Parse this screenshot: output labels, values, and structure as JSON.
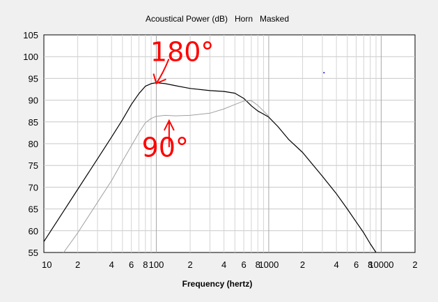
{
  "chart_data": {
    "type": "line",
    "title": "Acoustical Power (dB)   Horn   Masked",
    "xlabel": "Frequency (hertz)",
    "ylabel": "",
    "xscale": "log",
    "xlim": [
      10,
      20000
    ],
    "ylim": [
      55,
      105
    ],
    "grid": true,
    "y_ticks": [
      55,
      60,
      65,
      70,
      75,
      80,
      85,
      90,
      95,
      100,
      105
    ],
    "x_tick_labels": [
      {
        "x": 10,
        "label": "10"
      },
      {
        "x": 20,
        "label": "2"
      },
      {
        "x": 40,
        "label": "4"
      },
      {
        "x": 60,
        "label": "6"
      },
      {
        "x": 80,
        "label": "8"
      },
      {
        "x": 100,
        "label": "100"
      },
      {
        "x": 200,
        "label": "2"
      },
      {
        "x": 400,
        "label": "4"
      },
      {
        "x": 600,
        "label": "6"
      },
      {
        "x": 800,
        "label": "8"
      },
      {
        "x": 1000,
        "label": "1000"
      },
      {
        "x": 2000,
        "label": "2"
      },
      {
        "x": 4000,
        "label": "4"
      },
      {
        "x": 6000,
        "label": "6"
      },
      {
        "x": 8000,
        "label": "8"
      },
      {
        "x": 10000,
        "label": "10000"
      },
      {
        "x": 20000,
        "label": "2"
      }
    ],
    "series": [
      {
        "color": "#000000",
        "x": [
          10,
          15,
          20,
          30,
          40,
          50,
          60,
          70,
          80,
          90,
          100,
          120,
          150,
          200,
          300,
          400,
          500,
          600,
          700,
          800,
          900,
          1000,
          1200,
          1500,
          2000,
          3000,
          4000,
          5000,
          6000,
          7000,
          8000,
          9000
        ],
        "y": [
          57.5,
          64.5,
          69.5,
          76.5,
          81.5,
          85.5,
          89,
          91.5,
          93.2,
          93.8,
          94,
          93.8,
          93.3,
          92.7,
          92.2,
          92,
          91.6,
          90.4,
          88.7,
          87.5,
          86.8,
          86.1,
          84,
          81,
          78,
          72.5,
          68.5,
          65,
          62,
          59.5,
          57,
          55
        ]
      },
      {
        "color": "#a0a0a0",
        "x": [
          15,
          20,
          30,
          40,
          50,
          60,
          70,
          80,
          90,
          100,
          120,
          150,
          200,
          300,
          400,
          500,
          600,
          700,
          800,
          900,
          1000
        ],
        "y": [
          55,
          59.5,
          66.5,
          71.5,
          76,
          79.5,
          82.5,
          84.8,
          85.8,
          86.3,
          86.5,
          86.4,
          86.5,
          87,
          88,
          89,
          89.8,
          89.9,
          88.8,
          87.5,
          86.3
        ]
      }
    ],
    "annotations": [
      {
        "text": "180°",
        "x": 170,
        "y": 99,
        "color": "#ff0000"
      },
      {
        "text": "90°",
        "x": 120,
        "y": 77,
        "color": "#ff0000"
      }
    ]
  }
}
